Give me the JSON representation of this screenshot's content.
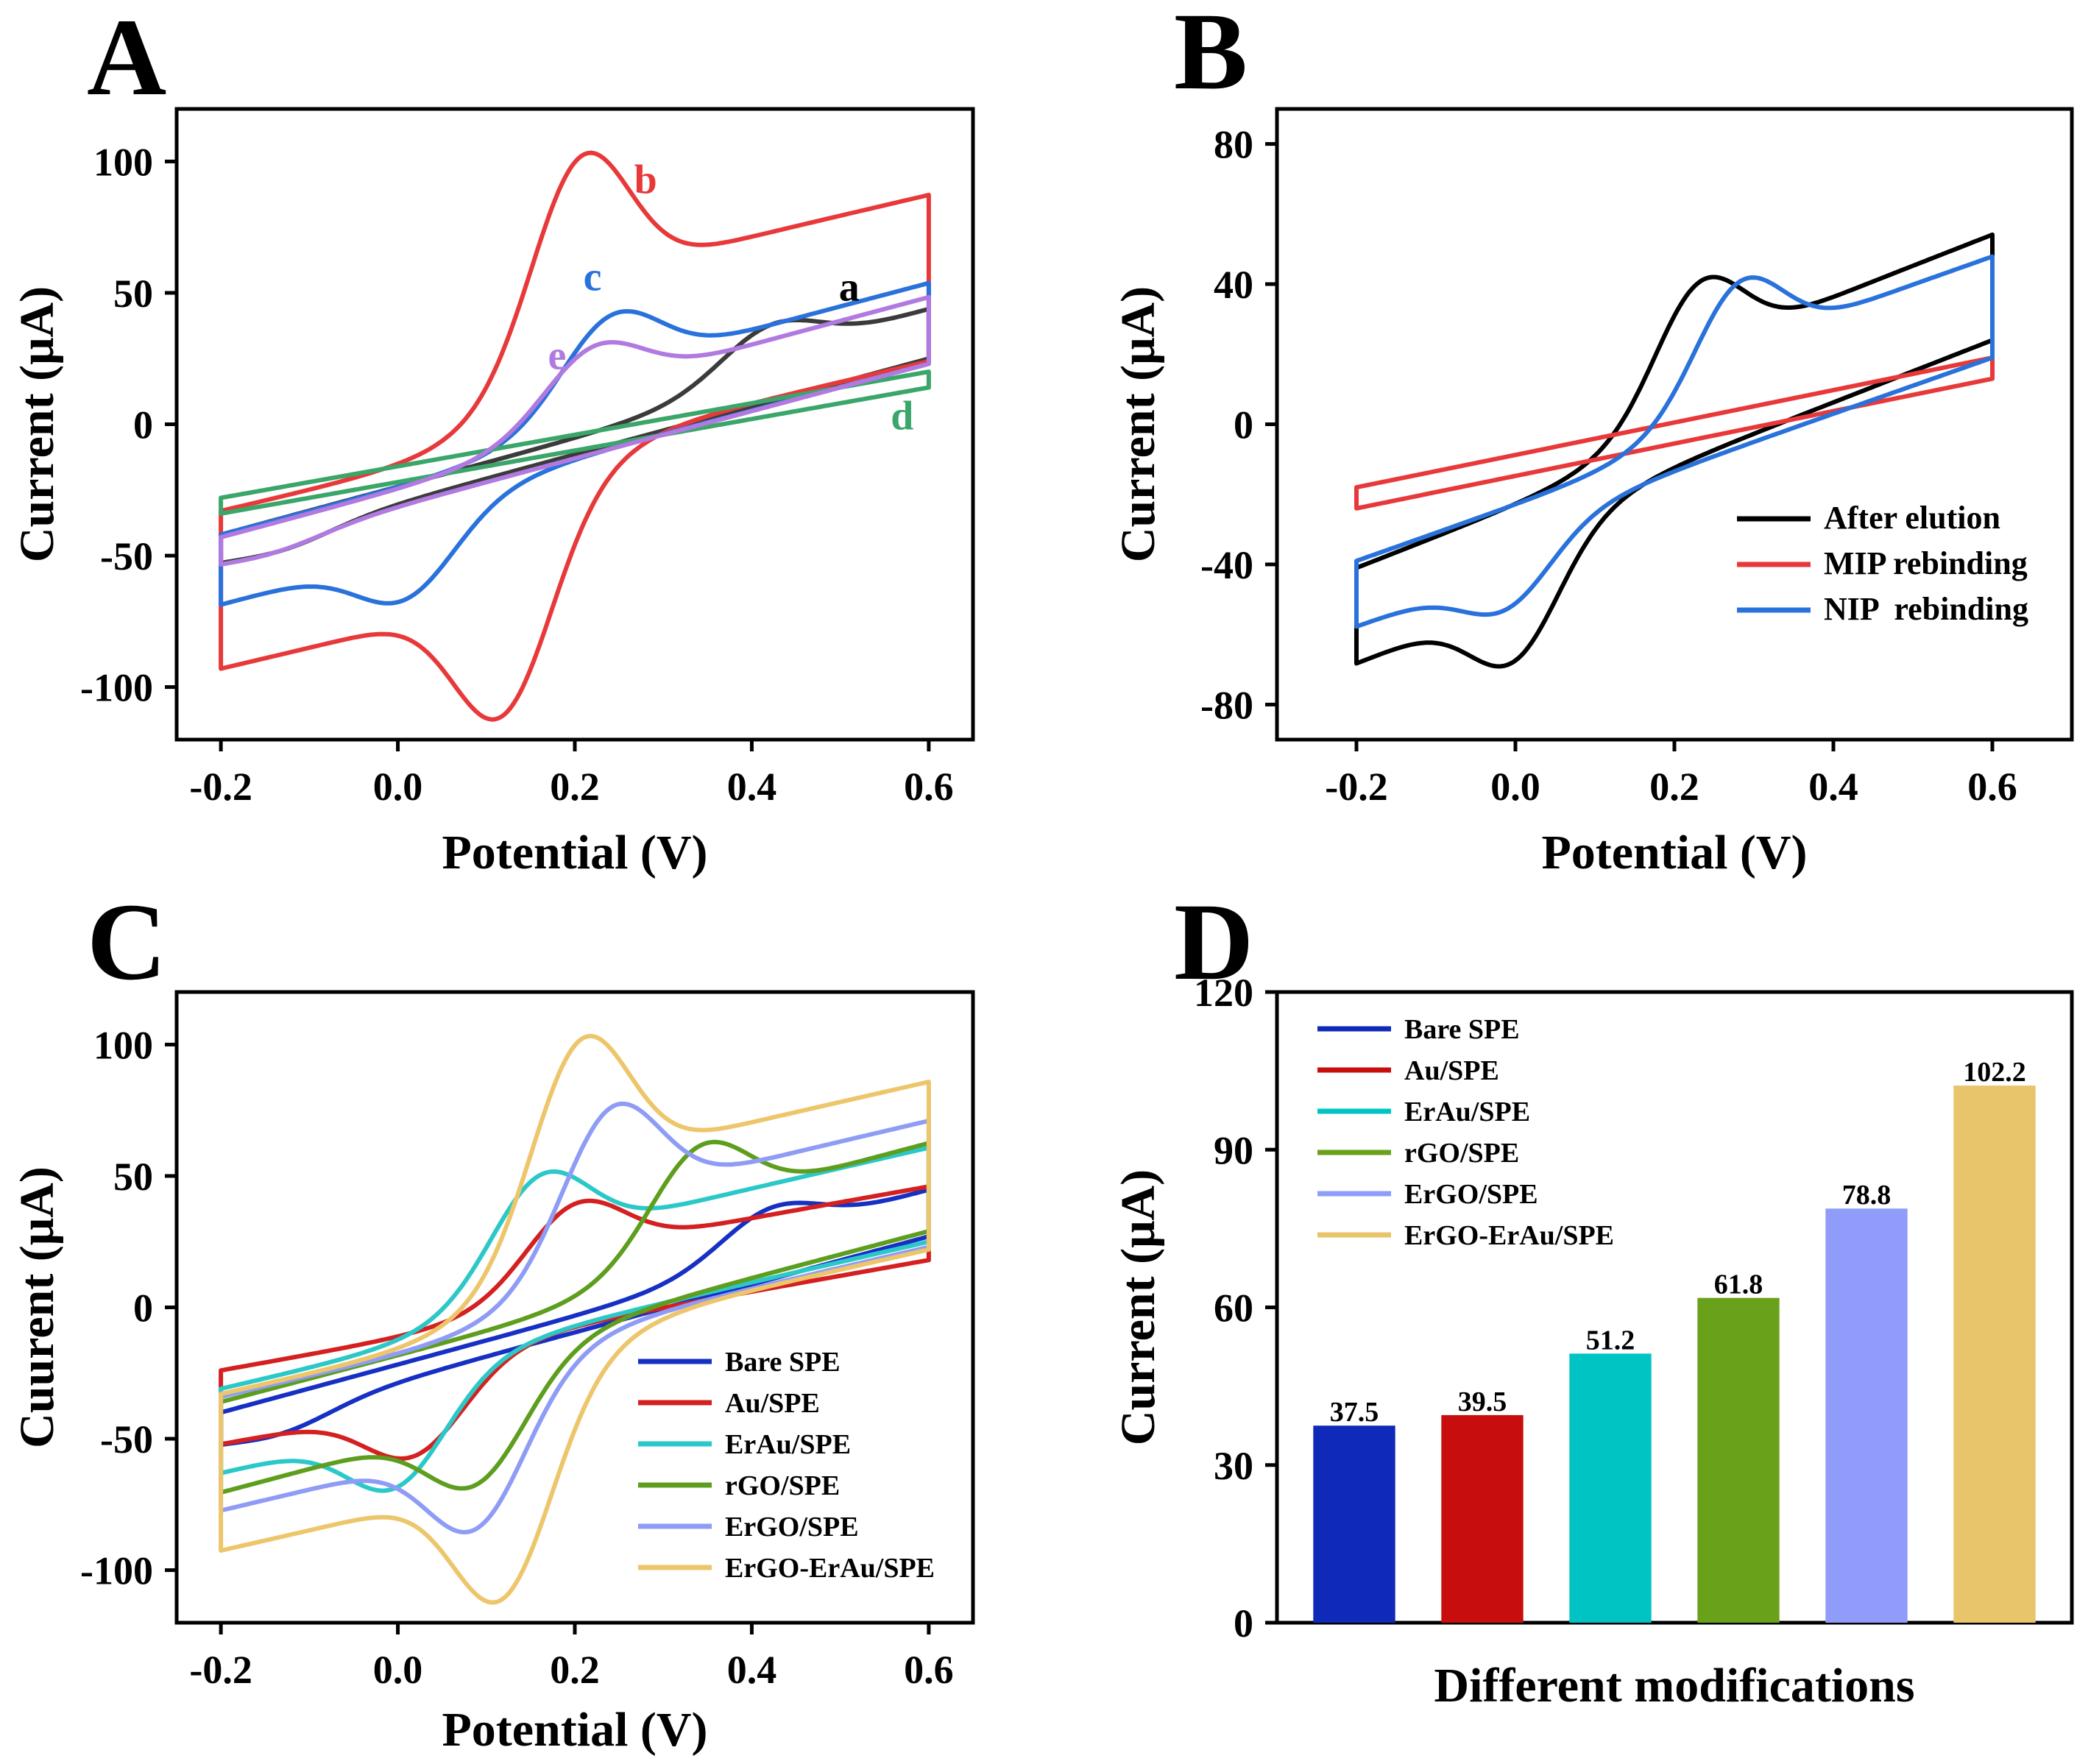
{
  "figure": {
    "panels": [
      {
        "id": "A",
        "letter": "A"
      },
      {
        "id": "B",
        "letter": "B"
      },
      {
        "id": "C",
        "letter": "C"
      },
      {
        "id": "D",
        "letter": "D"
      }
    ]
  },
  "colors": {
    "black": "#3b3b3b",
    "red": "#e8393a",
    "blue": "#2a72db",
    "green": "#3aa66a",
    "purple": "#b07ae0",
    "c_blue": "#1730c4",
    "c_red": "#d42020",
    "c_teal": "#2cc8c8",
    "c_green": "#5d9e1e",
    "c_lavender": "#8f9cf5",
    "c_gold": "#edc66c"
  },
  "chart_data": [
    {
      "id": "A",
      "type": "line",
      "title": "",
      "xlabel": "Potential (V)",
      "ylabel": "Current (μA)",
      "xlim": [
        -0.25,
        0.65
      ],
      "ylim": [
        -120,
        120
      ],
      "xticks": [
        -0.2,
        0.0,
        0.2,
        0.4,
        0.6
      ],
      "xtick_labels": [
        "-0.2",
        "0.0",
        "0.2",
        "0.4",
        "0.6"
      ],
      "yticks": [
        -100,
        -50,
        0,
        50,
        100
      ],
      "ytick_labels": [
        "-100",
        "-50",
        "0",
        "50",
        "100"
      ],
      "series": [
        {
          "name": "a",
          "color": "#3b3b3b",
          "Ipa": 38,
          "Epa": 0.42,
          "Ipc": -42,
          "Epc": -0.13,
          "I_start": -42,
          "I_end": 31
        },
        {
          "name": "b",
          "color": "#e8393a",
          "Ipa": 103,
          "Epa": 0.205,
          "Ipc": -106,
          "Epc": 0.12,
          "I_start": -33,
          "I_end": 30
        },
        {
          "name": "c",
          "color": "#2a72db",
          "Ipa": 42,
          "Epa": 0.24,
          "Ipc": -61,
          "Epc": 0.01,
          "I_start": -42,
          "I_end": 29
        },
        {
          "name": "d",
          "color": "#3aa66a",
          "Ipa": 20,
          "Epa": 0.6,
          "Ipc": -28,
          "Epc": -0.2,
          "I_start": -28,
          "I_end": 20
        },
        {
          "name": "e",
          "color": "#b07ae0",
          "Ipa": 30,
          "Epa": 0.22,
          "Ipc": -43,
          "Epc": -0.14,
          "I_start": -43,
          "I_end": 29
        }
      ],
      "annotations": [
        {
          "text": "a",
          "x": 0.51,
          "y": 47,
          "color": "#000000"
        },
        {
          "text": "b",
          "x": 0.28,
          "y": 88,
          "color": "#e8393a"
        },
        {
          "text": "c",
          "x": 0.22,
          "y": 51,
          "color": "#2a72db"
        },
        {
          "text": "e",
          "x": 0.18,
          "y": 21,
          "color": "#b07ae0"
        },
        {
          "text": "d",
          "x": 0.57,
          "y": -2,
          "color": "#3aa66a"
        }
      ]
    },
    {
      "id": "B",
      "type": "line",
      "title": "",
      "xlabel": "Potential (V)",
      "ylabel": "Current (μA)",
      "xlim": [
        -0.3,
        0.7
      ],
      "ylim": [
        -90,
        90
      ],
      "xticks": [
        -0.2,
        0.0,
        0.2,
        0.4,
        0.6
      ],
      "xtick_labels": [
        "-0.2",
        "0.0",
        "0.2",
        "0.4",
        "0.6"
      ],
      "yticks": [
        -80,
        -40,
        0,
        40,
        80
      ],
      "ytick_labels": [
        "-80",
        "-40",
        "0",
        "40",
        "80"
      ],
      "legend": "bottom-right",
      "series": [
        {
          "name": "After elution",
          "color": "#000000",
          "Ipa": 41,
          "Epa": 0.23,
          "Ipc": -62,
          "Epc": 0.0,
          "I_start": -41,
          "I_end": 30
        },
        {
          "name": "MIP rebinding",
          "color": "#e8393a",
          "Ipa": 19,
          "Epa": 0.6,
          "Ipc": -18,
          "Epc": -0.2,
          "I_start": -18,
          "I_end": 19
        },
        {
          "name": "NIP  rebinding",
          "color": "#2a72db",
          "Ipa": 41,
          "Epa": 0.28,
          "Ipc": -47,
          "Epc": -0.01,
          "I_start": -39,
          "I_end": 25
        }
      ]
    },
    {
      "id": "C",
      "type": "line",
      "title": "",
      "xlabel": "Potential (V)",
      "ylabel": "Cuurent (μA)",
      "xlim": [
        -0.25,
        0.65
      ],
      "ylim": [
        -120,
        120
      ],
      "xticks": [
        -0.2,
        0.0,
        0.2,
        0.4,
        0.6
      ],
      "xtick_labels": [
        "-0.2",
        "0.0",
        "0.2",
        "0.4",
        "0.6"
      ],
      "yticks": [
        -100,
        -50,
        0,
        50,
        100
      ],
      "ytick_labels": [
        "-100",
        "-50",
        "0",
        "50",
        "100"
      ],
      "legend": "bottom-right",
      "series": [
        {
          "name": "Bare SPE",
          "color": "#1730c4",
          "Ipa": 38,
          "Epa": 0.42,
          "Ipc": -42,
          "Epc": -0.13,
          "I_start": -40,
          "I_end": 33
        },
        {
          "name": "Au/SPE",
          "color": "#d42020",
          "Ipa": 40,
          "Epa": 0.2,
          "Ipc": -51,
          "Epc": 0.02,
          "I_start": -24,
          "I_end": 24
        },
        {
          "name": "ErAu/SPE",
          "color": "#2cc8c8",
          "Ipa": 51,
          "Epa": 0.16,
          "Ipc": -63,
          "Epc": 0.0,
          "I_start": -31,
          "I_end": 31
        },
        {
          "name": "rGO/SPE",
          "color": "#5d9e1e",
          "Ipa": 62,
          "Epa": 0.34,
          "Ipc": -62,
          "Epc": 0.09,
          "I_start": -36,
          "I_end": 35
        },
        {
          "name": "ErGO/SPE",
          "color": "#8f9cf5",
          "Ipa": 77,
          "Epa": 0.24,
          "Ipc": -79,
          "Epc": 0.09,
          "I_start": -34,
          "I_end": 29
        },
        {
          "name": "ErGO-ErAu/SPE",
          "color": "#edc66c",
          "Ipa": 103,
          "Epa": 0.205,
          "Ipc": -106,
          "Epc": 0.12,
          "I_start": -33,
          "I_end": 28
        }
      ]
    },
    {
      "id": "D",
      "type": "bar",
      "title": "",
      "xlabel": "Different modifications",
      "ylabel": "Current (μA)",
      "ylim": [
        0,
        120
      ],
      "yticks": [
        0,
        30,
        60,
        90,
        120
      ],
      "ytick_labels": [
        "0",
        "30",
        "60",
        "90",
        "120"
      ],
      "legend": "top-left",
      "categories": [
        "Bare SPE",
        "Au/SPE",
        "ErAu/SPE",
        "rGO/SPE",
        "ErGO/SPE",
        "ErGO-ErAu/SPE"
      ],
      "values": [
        37.5,
        39.5,
        51.2,
        61.8,
        78.8,
        102.2
      ],
      "value_labels": [
        "37.5",
        "39.5",
        "51.2",
        "61.8",
        "78.8",
        "102.2"
      ],
      "colors": [
        "#0f2ab8",
        "#c80d0d",
        "#00c4c4",
        "#6aa11a",
        "#8f9cfa",
        "#e8c46a"
      ]
    }
  ]
}
